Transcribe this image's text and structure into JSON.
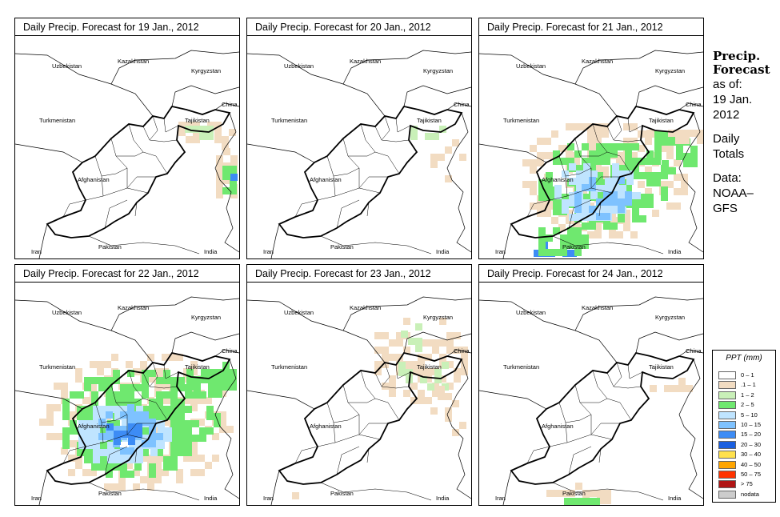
{
  "panels": [
    {
      "title": "Daily Precip. Forecast for  19 Jan., 2012"
    },
    {
      "title": "Daily Precip. Forecast for  20 Jan., 2012"
    },
    {
      "title": "Daily Precip. Forecast for  21 Jan., 2012"
    },
    {
      "title": "Daily Precip. Forecast for  22 Jan., 2012"
    },
    {
      "title": "Daily Precip. Forecast for  23 Jan., 2012"
    },
    {
      "title": "Daily Precip. Forecast for  24 Jan., 2012"
    }
  ],
  "map_labels": {
    "uzbekistan": "Uzbekistan",
    "kazakhstan": "Kazakhstan",
    "kyrgyzstan": "Kyrgyzstan",
    "china": "China",
    "turkmenistan": "Turkmenistan",
    "tajikistan": "Tajikistan",
    "afghanistan": "Afghanistan",
    "pakistan": "Pakistan",
    "iran": "Iran",
    "india": "India"
  },
  "side": {
    "title_line1": "Precip.",
    "title_line2": "Forecast",
    "asof": "as of:",
    "date1": "19 Jan.",
    "date2": "2012",
    "daily1": "Daily",
    "daily2": "Totals",
    "data1": "Data:",
    "data2": "NOAA–",
    "data3": "GFS"
  },
  "legend": {
    "title": "PPT (mm)",
    "items": [
      {
        "label": "0 – 1",
        "color": "#ffffff"
      },
      {
        "label": ".1 – 1",
        "color": "#f2dcc2"
      },
      {
        "label": "1 – 2",
        "color": "#c9f0b8"
      },
      {
        "label": "2 – 5",
        "color": "#6fe86f"
      },
      {
        "label": "5 – 10",
        "color": "#bfe4ff"
      },
      {
        "label": "10 – 15",
        "color": "#7ec2ff"
      },
      {
        "label": "15 – 20",
        "color": "#3d8cf5"
      },
      {
        "label": "20 – 30",
        "color": "#1a5fe0"
      },
      {
        "label": "30 – 40",
        "color": "#ffe14d"
      },
      {
        "label": "40 – 50",
        "color": "#ffa500"
      },
      {
        "label": "50 – 75",
        "color": "#ff3300"
      },
      {
        "label": "> 75",
        "color": "#b01515"
      },
      {
        "label": "nodata",
        "color": "#cccccc"
      }
    ]
  }
}
